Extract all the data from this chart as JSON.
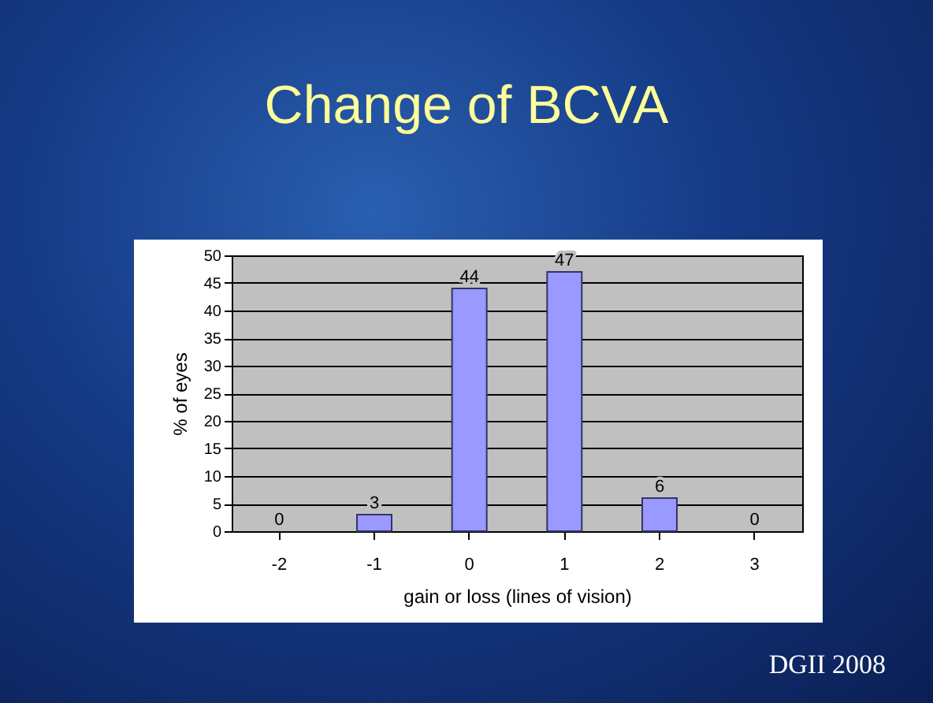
{
  "chart_data": {
    "type": "bar",
    "title": "Change of BCVA",
    "xlabel": "gain or loss (lines of vision)",
    "ylabel": "% of eyes",
    "categories": [
      "-2",
      "-1",
      "0",
      "1",
      "2",
      "3"
    ],
    "values": [
      0,
      3,
      44,
      47,
      6,
      0
    ],
    "color": "#9999ff",
    "ylim": [
      0,
      50
    ],
    "yticks": [
      0,
      5,
      10,
      15,
      20,
      25,
      30,
      35,
      40,
      45,
      50
    ],
    "grid": "y",
    "data_labels": true,
    "annotations": [
      "DGII 2008"
    ]
  }
}
